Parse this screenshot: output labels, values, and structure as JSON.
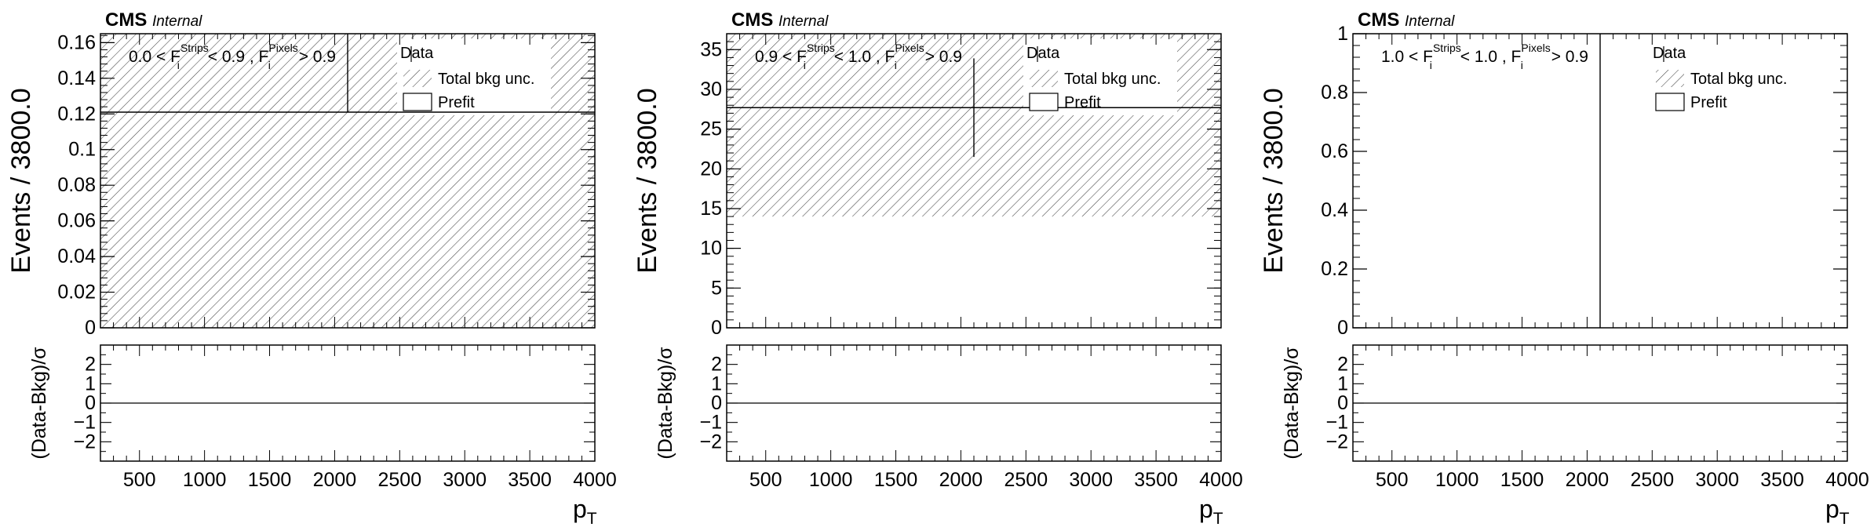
{
  "chart_data": [
    {
      "type": "bar",
      "experiment": "CMS",
      "status": "Internal",
      "region": {
        "strips_lo": "0.0",
        "strips_hi": "0.9",
        "strips_sym": "F",
        "strips_sub": "i",
        "strips_sup": "Strips",
        "pixels_sym": "F",
        "pixels_sub": "i",
        "pixels_sup": "Pixels",
        "pixels_cut": "0.9"
      },
      "ylabel": "Events / 3800.0",
      "xlabel": "p",
      "xlabel_sub": "T",
      "ratio_ylabel": "(Data-Bkg)/σ",
      "xlim": [
        200,
        4000
      ],
      "ylim": [
        0,
        0.165
      ],
      "yticks": [
        0,
        0.02,
        0.04,
        0.06,
        0.08,
        0.1,
        0.12,
        0.14,
        0.16
      ],
      "ytick_labels": [
        "0",
        "0.02",
        "0.04",
        "0.06",
        "0.08",
        "0.1",
        "0.12",
        "0.14",
        "0.16"
      ],
      "xticks": [
        500,
        1000,
        1500,
        2000,
        2500,
        3000,
        3500,
        4000
      ],
      "xtick_labels": [
        "500",
        "1000",
        "1500",
        "2000",
        "2500",
        "3000",
        "3500",
        "4000"
      ],
      "ratio_ylim": [
        -3,
        3
      ],
      "ratio_yticks": [
        -2,
        -1,
        0,
        1,
        2
      ],
      "ratio_ytick_labels": [
        "−2",
        "−1",
        "0",
        "1",
        "2"
      ],
      "prefit": 0.121,
      "band": [
        0.0,
        0.165
      ],
      "data_point": {
        "x": 2100,
        "y": 0.121,
        "err_low": 0.0,
        "err_high": 0.044
      },
      "legend": [
        "Data",
        "Total bkg unc.",
        "Prefit"
      ],
      "legend_placement": "top-right"
    },
    {
      "type": "bar",
      "experiment": "CMS",
      "status": "Internal",
      "region": {
        "strips_lo": "0.9",
        "strips_hi": "1.0",
        "strips_sym": "F",
        "strips_sub": "i",
        "strips_sup": "Strips",
        "pixels_sym": "F",
        "pixels_sub": "i",
        "pixels_sup": "Pixels",
        "pixels_cut": "0.9"
      },
      "ylabel": "Events / 3800.0",
      "xlabel": "p",
      "xlabel_sub": "T",
      "ratio_ylabel": "(Data-Bkg)/σ",
      "xlim": [
        200,
        4000
      ],
      "ylim": [
        0,
        37
      ],
      "yticks": [
        0,
        5,
        10,
        15,
        20,
        25,
        30,
        35
      ],
      "ytick_labels": [
        "0",
        "5",
        "10",
        "15",
        "20",
        "25",
        "30",
        "35"
      ],
      "xticks": [
        500,
        1000,
        1500,
        2000,
        2500,
        3000,
        3500,
        4000
      ],
      "xtick_labels": [
        "500",
        "1000",
        "1500",
        "2000",
        "2500",
        "3000",
        "3500",
        "4000"
      ],
      "ratio_ylim": [
        -3,
        3
      ],
      "ratio_yticks": [
        -2,
        -1,
        0,
        1,
        2
      ],
      "ratio_ytick_labels": [
        "−2",
        "−1",
        "0",
        "1",
        "2"
      ],
      "prefit": 27.7,
      "band": [
        14.0,
        37.0
      ],
      "data_point": {
        "x": 2100,
        "y": 27.7,
        "err_low": 6.2,
        "err_high": 6.2
      },
      "legend": [
        "Data",
        "Total bkg unc.",
        "Prefit"
      ],
      "legend_placement": "top-right"
    },
    {
      "type": "bar",
      "experiment": "CMS",
      "status": "Internal",
      "region": {
        "strips_lo": "1.0",
        "strips_hi": "1.0",
        "strips_sym": "F",
        "strips_sub": "i",
        "strips_sup": "Strips",
        "pixels_sym": "F",
        "pixels_sub": "i",
        "pixels_sup": "Pixels",
        "pixels_cut": "0.9"
      },
      "ylabel": "Events / 3800.0",
      "xlabel": "p",
      "xlabel_sub": "T",
      "ratio_ylabel": "(Data-Bkg)/σ",
      "xlim": [
        200,
        4000
      ],
      "ylim": [
        0,
        1
      ],
      "yticks": [
        0,
        0.2,
        0.4,
        0.6,
        0.8,
        1
      ],
      "ytick_labels": [
        "0",
        "0.2",
        "0.4",
        "0.6",
        "0.8",
        "1"
      ],
      "xticks": [
        500,
        1000,
        1500,
        2000,
        2500,
        3000,
        3500,
        4000
      ],
      "xtick_labels": [
        "500",
        "1000",
        "1500",
        "2000",
        "2500",
        "3000",
        "3500",
        "4000"
      ],
      "ratio_ylim": [
        -3,
        3
      ],
      "ratio_yticks": [
        -2,
        -1,
        0,
        1,
        2
      ],
      "ratio_ytick_labels": [
        "−2",
        "−1",
        "0",
        "1",
        "2"
      ],
      "prefit": null,
      "band": null,
      "data_point": {
        "x": 2100,
        "y": 0,
        "err_low": 0,
        "err_high": 1
      },
      "legend": [
        "Data",
        "Total bkg unc.",
        "Prefit"
      ],
      "legend_placement": "top-right"
    }
  ]
}
